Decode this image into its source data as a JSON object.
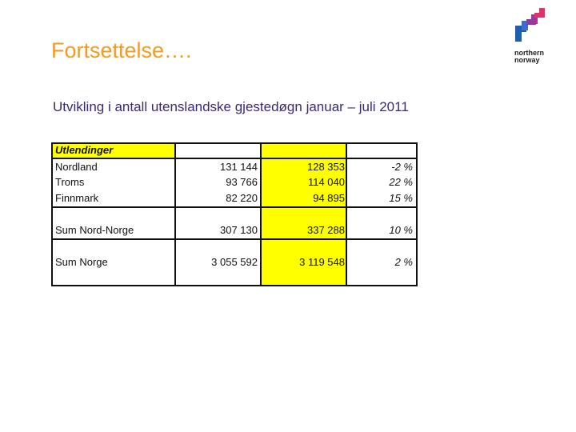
{
  "slide": {
    "title": "Fortsettelse….",
    "subtitle": "Utvikling i antall utenslandske gjestedøgn januar – juli 2011"
  },
  "logo": {
    "line1": "northern",
    "line2": "norway",
    "colors": [
      "#1a5fb4",
      "#8a3aa0",
      "#e0306e"
    ]
  },
  "table": {
    "header_label": "Utlendinger",
    "highlight_color": "#ffff00",
    "rows": [
      {
        "label": "Nordland",
        "v1": "131 144",
        "v2": "128 353",
        "change": "-2 %"
      },
      {
        "label": "Troms",
        "v1": "93 766",
        "v2": "114 040",
        "change": "22 %"
      },
      {
        "label": "Finnmark",
        "v1": "82 220",
        "v2": "94 895",
        "change": "15 %"
      },
      {
        "label": "Sum Nord-Norge",
        "v1": "307 130",
        "v2": "337 288",
        "change": "10 %"
      },
      {
        "label": "Sum Norge",
        "v1": "3 055 592",
        "v2": "3 119 548",
        "change": "2 %"
      }
    ]
  }
}
